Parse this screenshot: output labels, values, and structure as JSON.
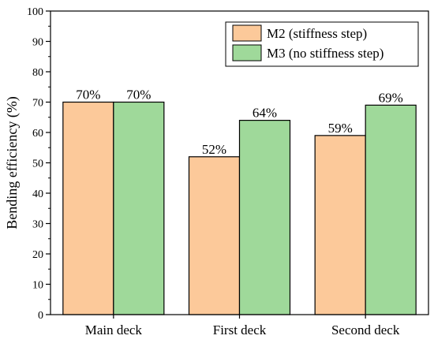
{
  "chart_data": {
    "type": "bar",
    "title": "",
    "xlabel": "",
    "ylabel": "Bending efficiency (%)",
    "ylim": [
      0,
      100
    ],
    "yticks": [
      0,
      10,
      20,
      30,
      40,
      50,
      60,
      70,
      80,
      90,
      100
    ],
    "categories": [
      "Main deck",
      "First deck",
      "Second deck"
    ],
    "series": [
      {
        "name": "M2 (stiffness step)",
        "values": [
          70,
          52,
          59
        ],
        "labels": [
          "70%",
          "52%",
          "59%"
        ],
        "color": "#FCC99A"
      },
      {
        "name": "M3 (no stiffness step)",
        "values": [
          70,
          64,
          69
        ],
        "labels": [
          "70%",
          "64%",
          "69%"
        ],
        "color": "#9FD99A"
      }
    ],
    "legend_position": "top-right",
    "grid": false
  }
}
